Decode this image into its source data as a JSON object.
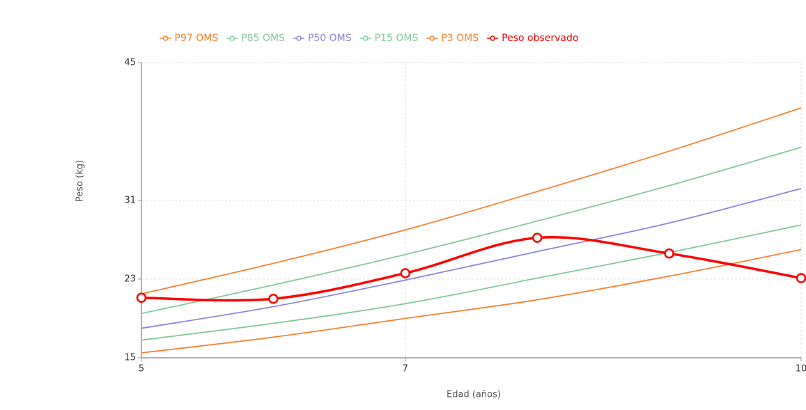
{
  "chart_data": {
    "type": "line",
    "xlabel": "Edad (años)",
    "ylabel": "Peso (kg)",
    "x": [
      5,
      6,
      7,
      8,
      9,
      10
    ],
    "xlim": [
      5,
      10
    ],
    "xticks": [
      5,
      7,
      10
    ],
    "ylim": [
      15,
      45
    ],
    "yticks": [
      15,
      23,
      31,
      45
    ],
    "grid": true,
    "legend": "top",
    "series": [
      {
        "name": "P97 OMS",
        "color": "#f58231",
        "values": [
          21.5,
          24.6,
          28.0,
          31.9,
          36.0,
          40.4
        ]
      },
      {
        "name": "P85 OMS",
        "color": "#82c99e",
        "values": [
          19.5,
          22.4,
          25.5,
          28.9,
          32.5,
          36.4
        ]
      },
      {
        "name": "P50 OMS",
        "color": "#8b86dc",
        "values": [
          18.0,
          20.2,
          22.9,
          25.8,
          28.7,
          32.2
        ]
      },
      {
        "name": "P15 OMS",
        "color": "#82c99e",
        "values": [
          16.8,
          18.5,
          20.5,
          23.1,
          25.7,
          28.5
        ]
      },
      {
        "name": "P3 OMS",
        "color": "#f58231",
        "values": [
          15.5,
          17.1,
          19.0,
          20.9,
          23.3,
          26.0
        ]
      },
      {
        "name": "Peso observado",
        "color": "#ff0000",
        "values": [
          21.1,
          21.0,
          23.6,
          27.2,
          25.6,
          23.1
        ],
        "markers": true
      }
    ]
  }
}
